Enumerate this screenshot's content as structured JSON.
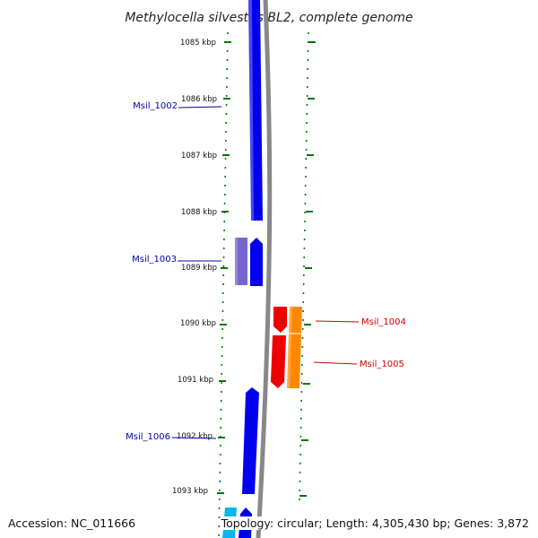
{
  "title": "Methylocella silvestris BL2, complete genome",
  "ticks": [
    {
      "label": "1085 kbp"
    },
    {
      "label": "1086 kbp"
    },
    {
      "label": "1087 kbp"
    },
    {
      "label": "1088 kbp"
    },
    {
      "label": "1089 kbp"
    },
    {
      "label": "1090 kbp"
    },
    {
      "label": "1091 kbp"
    },
    {
      "label": "1092 kbp"
    },
    {
      "label": "1093 kbp"
    }
  ],
  "genes": [
    {
      "label": "Msil_1002",
      "color": "#0000ee",
      "label_color": "#0000aa"
    },
    {
      "label": "Msil_1003",
      "color": "#7766cc",
      "label_color": "#0000aa"
    },
    {
      "label": "Msil_1004",
      "color": "#ee0000",
      "label_color": "#cc0000"
    },
    {
      "label": "Msil_1005",
      "color": "#ff8800",
      "label_color": "#cc0000"
    },
    {
      "label": "Msil_1006",
      "color": "#0000ee",
      "label_color": "#0000aa"
    }
  ],
  "colors": {
    "backbone": "#888888",
    "tick_marks": "#007700",
    "forward_gene": "#0000ee",
    "reverse_gene": "#ee0000",
    "cyan_gene": "#00b7ee"
  },
  "footer": {
    "accession": "Accession: NC_011666",
    "summary": "Topology: circular; Length: 4,305,430 bp; Genes: 3,872"
  }
}
